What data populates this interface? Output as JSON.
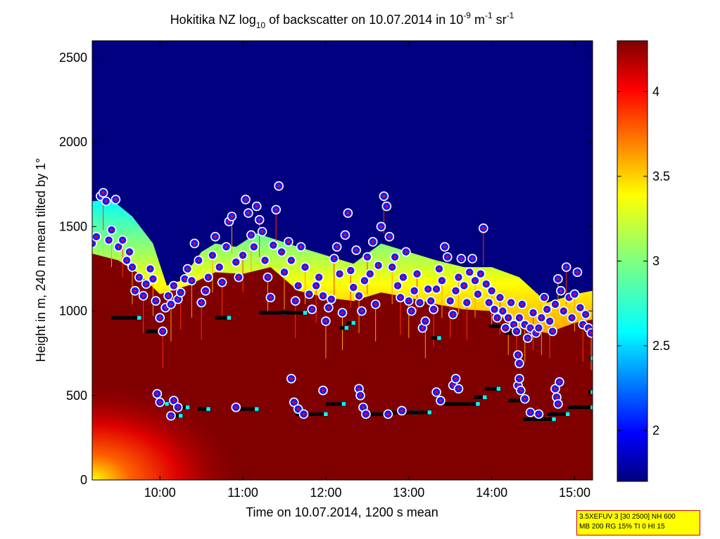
{
  "chart_data": {
    "type": "heatmap",
    "title": {
      "prefix": "Hokitika NZ log",
      "sub": "10",
      "mid": " of backscatter on 10.07.2014 in 10",
      "sup1": "-9",
      "unit1": " m",
      "sup2": "-1",
      "unit2": " sr",
      "sup3": "-1"
    },
    "xlabel": "Time on 10.07.2014, 1200 s mean",
    "ylabel": "Height in m, 240 m mean tilted by 1°",
    "x_time_range": [
      "09:11",
      "15:13"
    ],
    "xticks": [
      "10:00",
      "11:00",
      "12:00",
      "13:00",
      "14:00",
      "15:00"
    ],
    "ylim": [
      0,
      2600
    ],
    "yticks": [
      "0",
      "500",
      "1000",
      "1500",
      "2000",
      "2500"
    ],
    "colorbar": {
      "range": [
        1.7,
        4.3
      ],
      "ticks": [
        "2",
        "2.5",
        "3",
        "3.5",
        "4"
      ],
      "colormap": "jet"
    },
    "cloud_top_height": [
      [
        "09:11",
        1650
      ],
      [
        "09:25",
        1660
      ],
      [
        "09:40",
        1560
      ],
      [
        "09:55",
        1400
      ],
      [
        "10:05",
        1150
      ],
      [
        "10:15",
        1180
      ],
      [
        "10:30",
        1350
      ],
      [
        "10:40",
        1400
      ],
      [
        "10:55",
        1380
      ],
      [
        "11:10",
        1460
      ],
      [
        "11:25",
        1420
      ],
      [
        "11:40",
        1380
      ],
      [
        "12:00",
        1330
      ],
      [
        "12:20",
        1280
      ],
      [
        "12:40",
        1400
      ],
      [
        "13:00",
        1350
      ],
      [
        "13:20",
        1300
      ],
      [
        "13:40",
        1260
      ],
      [
        "14:00",
        1260
      ],
      [
        "14:20",
        1200
      ],
      [
        "14:40",
        1050
      ],
      [
        "15:00",
        1100
      ],
      [
        "15:13",
        1120
      ]
    ],
    "aerosol_layer_top_height": [
      [
        "09:11",
        1340
      ],
      [
        "09:30",
        1300
      ],
      [
        "09:45",
        1220
      ],
      [
        "10:00",
        1100
      ],
      [
        "10:20",
        1150
      ],
      [
        "10:40",
        1230
      ],
      [
        "11:00",
        1220
      ],
      [
        "11:20",
        1260
      ],
      [
        "11:40",
        1120
      ],
      [
        "12:00",
        1080
      ],
      [
        "12:20",
        1060
      ],
      [
        "12:40",
        1110
      ],
      [
        "13:00",
        1080
      ],
      [
        "13:20",
        1040
      ],
      [
        "13:40",
        1010
      ],
      [
        "14:00",
        1000
      ],
      [
        "14:20",
        900
      ],
      [
        "14:40",
        870
      ],
      [
        "15:00",
        930
      ],
      [
        "15:13",
        950
      ]
    ],
    "cloud_base_points": [
      [
        "09:11",
        1400
      ],
      [
        "09:14",
        1440
      ],
      [
        "09:17",
        1680
      ],
      [
        "09:19",
        1700
      ],
      [
        "09:21",
        1650
      ],
      [
        "09:23",
        1420
      ],
      [
        "09:25",
        1480
      ],
      [
        "09:28",
        1660
      ],
      [
        "09:30",
        1380
      ],
      [
        "09:33",
        1420
      ],
      [
        "09:36",
        1300
      ],
      [
        "09:38",
        1350
      ],
      [
        "09:40",
        1260
      ],
      [
        "09:42",
        1120
      ],
      [
        "09:45",
        1200
      ],
      [
        "09:48",
        1090
      ],
      [
        "09:50",
        1160
      ],
      [
        "09:53",
        1250
      ],
      [
        "09:55",
        1190
      ],
      [
        "09:57",
        1060
      ],
      [
        "10:00",
        960
      ],
      [
        "10:02",
        880
      ],
      [
        "10:04",
        1020
      ],
      [
        "10:06",
        1090
      ],
      [
        "10:08",
        1040
      ],
      [
        "10:10",
        1150
      ],
      [
        "10:13",
        1070
      ],
      [
        "10:15",
        1110
      ],
      [
        "10:18",
        1190
      ],
      [
        "10:20",
        1250
      ],
      [
        "10:23",
        1180
      ],
      [
        "10:25",
        1400
      ],
      [
        "10:28",
        1300
      ],
      [
        "10:30",
        1050
      ],
      [
        "10:33",
        1120
      ],
      [
        "10:35",
        1200
      ],
      [
        "10:38",
        1330
      ],
      [
        "10:40",
        1440
      ],
      [
        "10:43",
        1260
      ],
      [
        "10:45",
        1170
      ],
      [
        "10:48",
        1380
      ],
      [
        "10:50",
        1530
      ],
      [
        "10:52",
        1560
      ],
      [
        "10:55",
        1290
      ],
      [
        "10:57",
        1200
      ],
      [
        "11:00",
        1330
      ],
      [
        "11:02",
        1660
      ],
      [
        "11:04",
        1580
      ],
      [
        "11:06",
        1450
      ],
      [
        "11:08",
        1380
      ],
      [
        "11:10",
        1620
      ],
      [
        "11:12",
        1540
      ],
      [
        "11:14",
        1470
      ],
      [
        "11:16",
        1300
      ],
      [
        "11:18",
        1200
      ],
      [
        "11:20",
        1080
      ],
      [
        "11:22",
        1390
      ],
      [
        "11:24",
        1600
      ],
      [
        "11:26",
        1740
      ],
      [
        "11:28",
        1350
      ],
      [
        "11:30",
        1230
      ],
      [
        "11:33",
        1410
      ],
      [
        "11:35",
        1300
      ],
      [
        "11:38",
        1060
      ],
      [
        "11:40",
        1150
      ],
      [
        "11:42",
        1380
      ],
      [
        "11:45",
        1260
      ],
      [
        "11:48",
        1100
      ],
      [
        "11:50",
        1010
      ],
      [
        "11:53",
        1150
      ],
      [
        "11:55",
        1200
      ],
      [
        "11:58",
        1090
      ],
      [
        "12:00",
        940
      ],
      [
        "12:02",
        1020
      ],
      [
        "12:04",
        1070
      ],
      [
        "12:06",
        1310
      ],
      [
        "12:08",
        1380
      ],
      [
        "12:10",
        1220
      ],
      [
        "12:12",
        990
      ],
      [
        "12:14",
        1450
      ],
      [
        "12:16",
        1580
      ],
      [
        "12:18",
        1240
      ],
      [
        "12:20",
        1140
      ],
      [
        "12:22",
        1360
      ],
      [
        "12:24",
        1090
      ],
      [
        "12:26",
        1000
      ],
      [
        "12:28",
        1180
      ],
      [
        "12:30",
        1320
      ],
      [
        "12:32",
        1220
      ],
      [
        "12:34",
        1410
      ],
      [
        "12:36",
        1040
      ],
      [
        "12:38",
        1270
      ],
      [
        "12:40",
        1500
      ],
      [
        "12:42",
        1680
      ],
      [
        "12:44",
        1620
      ],
      [
        "12:46",
        1440
      ],
      [
        "12:48",
        1260
      ],
      [
        "12:50",
        1320
      ],
      [
        "12:52",
        1150
      ],
      [
        "12:54",
        1080
      ],
      [
        "12:56",
        1200
      ],
      [
        "12:58",
        1350
      ],
      [
        "13:00",
        1060
      ],
      [
        "13:02",
        1000
      ],
      [
        "13:04",
        1120
      ],
      [
        "13:06",
        1220
      ],
      [
        "13:08",
        1050
      ],
      [
        "13:10",
        900
      ],
      [
        "13:12",
        940
      ],
      [
        "13:14",
        1130
      ],
      [
        "13:16",
        1060
      ],
      [
        "13:18",
        1010
      ],
      [
        "13:20",
        1130
      ],
      [
        "13:22",
        1250
      ],
      [
        "13:24",
        1180
      ],
      [
        "13:26",
        1380
      ],
      [
        "13:28",
        1320
      ],
      [
        "13:30",
        1060
      ],
      [
        "13:32",
        980
      ],
      [
        "13:34",
        1120
      ],
      [
        "13:36",
        1200
      ],
      [
        "13:38",
        1310
      ],
      [
        "13:40",
        1150
      ],
      [
        "13:42",
        1050
      ],
      [
        "13:44",
        1230
      ],
      [
        "13:46",
        1310
      ],
      [
        "13:48",
        1180
      ],
      [
        "13:50",
        1100
      ],
      [
        "13:52",
        1220
      ],
      [
        "13:54",
        1490
      ],
      [
        "13:56",
        1160
      ],
      [
        "13:58",
        1050
      ],
      [
        "14:00",
        1120
      ],
      [
        "14:02",
        1010
      ],
      [
        "14:04",
        960
      ],
      [
        "14:06",
        1080
      ],
      [
        "14:08",
        1000
      ],
      [
        "14:10",
        900
      ],
      [
        "14:12",
        960
      ],
      [
        "14:14",
        1050
      ],
      [
        "14:16",
        920
      ],
      [
        "14:18",
        880
      ],
      [
        "14:20",
        960
      ],
      [
        "14:22",
        1040
      ],
      [
        "14:24",
        920
      ],
      [
        "14:26",
        840
      ],
      [
        "14:28",
        900
      ],
      [
        "14:30",
        990
      ],
      [
        "14:32",
        870
      ],
      [
        "14:34",
        900
      ],
      [
        "14:36",
        960
      ],
      [
        "14:38",
        1080
      ],
      [
        "14:40",
        1010
      ],
      [
        "14:42",
        940
      ],
      [
        "14:44",
        880
      ],
      [
        "14:46",
        1040
      ],
      [
        "14:48",
        1190
      ],
      [
        "14:50",
        1120
      ],
      [
        "14:52",
        1000
      ],
      [
        "14:54",
        1260
      ],
      [
        "14:56",
        1080
      ],
      [
        "14:58",
        960
      ],
      [
        "15:00",
        1100
      ],
      [
        "15:02",
        1230
      ],
      [
        "15:04",
        1020
      ],
      [
        "15:06",
        920
      ],
      [
        "15:08",
        980
      ],
      [
        "15:10",
        900
      ],
      [
        "15:12",
        870
      ],
      [
        "09:58",
        510
      ],
      [
        "10:00",
        460
      ],
      [
        "10:08",
        380
      ],
      [
        "10:10",
        470
      ],
      [
        "10:13",
        430
      ],
      [
        "10:55",
        430
      ],
      [
        "11:35",
        600
      ],
      [
        "11:37",
        460
      ],
      [
        "11:40",
        420
      ],
      [
        "11:44",
        390
      ],
      [
        "11:58",
        530
      ],
      [
        "12:24",
        540
      ],
      [
        "12:25",
        500
      ],
      [
        "12:27",
        430
      ],
      [
        "12:29",
        390
      ],
      [
        "12:45",
        390
      ],
      [
        "12:55",
        410
      ],
      [
        "13:20",
        520
      ],
      [
        "13:23",
        470
      ],
      [
        "13:32",
        560
      ],
      [
        "13:34",
        600
      ],
      [
        "13:36",
        540
      ],
      [
        "14:19",
        560
      ],
      [
        "14:20",
        600
      ],
      [
        "14:21",
        530
      ],
      [
        "14:24",
        480
      ],
      [
        "14:28",
        400
      ],
      [
        "14:34",
        390
      ],
      [
        "14:46",
        540
      ],
      [
        "14:47",
        490
      ],
      [
        "14:48",
        450
      ],
      [
        "14:49",
        580
      ],
      [
        "14:20",
        690
      ],
      [
        "14:19",
        740
      ]
    ],
    "layer_segments": [
      [
        "09:25",
        "09:45",
        960
      ],
      [
        "09:50",
        "10:00",
        880
      ],
      [
        "09:57",
        "10:05",
        450
      ],
      [
        "10:06",
        "10:15",
        380
      ],
      [
        "10:10",
        "10:20",
        430
      ],
      [
        "10:27",
        "10:35",
        420
      ],
      [
        "10:40",
        "10:50",
        960
      ],
      [
        "10:55",
        "11:10",
        420
      ],
      [
        "11:12",
        "11:30",
        990
      ],
      [
        "11:15",
        "11:45",
        990
      ],
      [
        "11:38",
        "12:00",
        390
      ],
      [
        "12:00",
        "12:13",
        450
      ],
      [
        "12:10",
        "12:15",
        900
      ],
      [
        "12:15",
        "12:20",
        930
      ],
      [
        "12:28",
        "12:45",
        390
      ],
      [
        "12:45",
        "13:05",
        400
      ],
      [
        "13:00",
        "13:15",
        400
      ],
      [
        "13:16",
        "13:22",
        840
      ],
      [
        "13:25",
        "13:50",
        450
      ],
      [
        "13:47",
        "13:55",
        490
      ],
      [
        "13:55",
        "14:05",
        540
      ],
      [
        "13:58",
        "14:15",
        910
      ],
      [
        "14:10",
        "14:20",
        870
      ],
      [
        "14:12",
        "14:25",
        470
      ],
      [
        "14:23",
        "14:40",
        360
      ],
      [
        "14:30",
        "14:45",
        360
      ],
      [
        "14:40",
        "14:55",
        390
      ],
      [
        "14:55",
        "15:13",
        430
      ],
      [
        "15:10",
        "15:13",
        520
      ],
      [
        "15:11",
        "15:13",
        720
      ]
    ]
  },
  "info_box": {
    "line1": "3.5XEFUV 3 [30 2500] NH 600",
    "line2": "MB 200 RG 15% TI 0 HI 15"
  },
  "colors": {
    "bg_low": "#000080",
    "saturated": "#800000",
    "cloud_base_fill": "#1a1aff",
    "cloud_base_edge": "#ffffff",
    "cloud_base_dot": "#ff0000",
    "segment": "#000000",
    "segment_end": "#00ffff"
  }
}
